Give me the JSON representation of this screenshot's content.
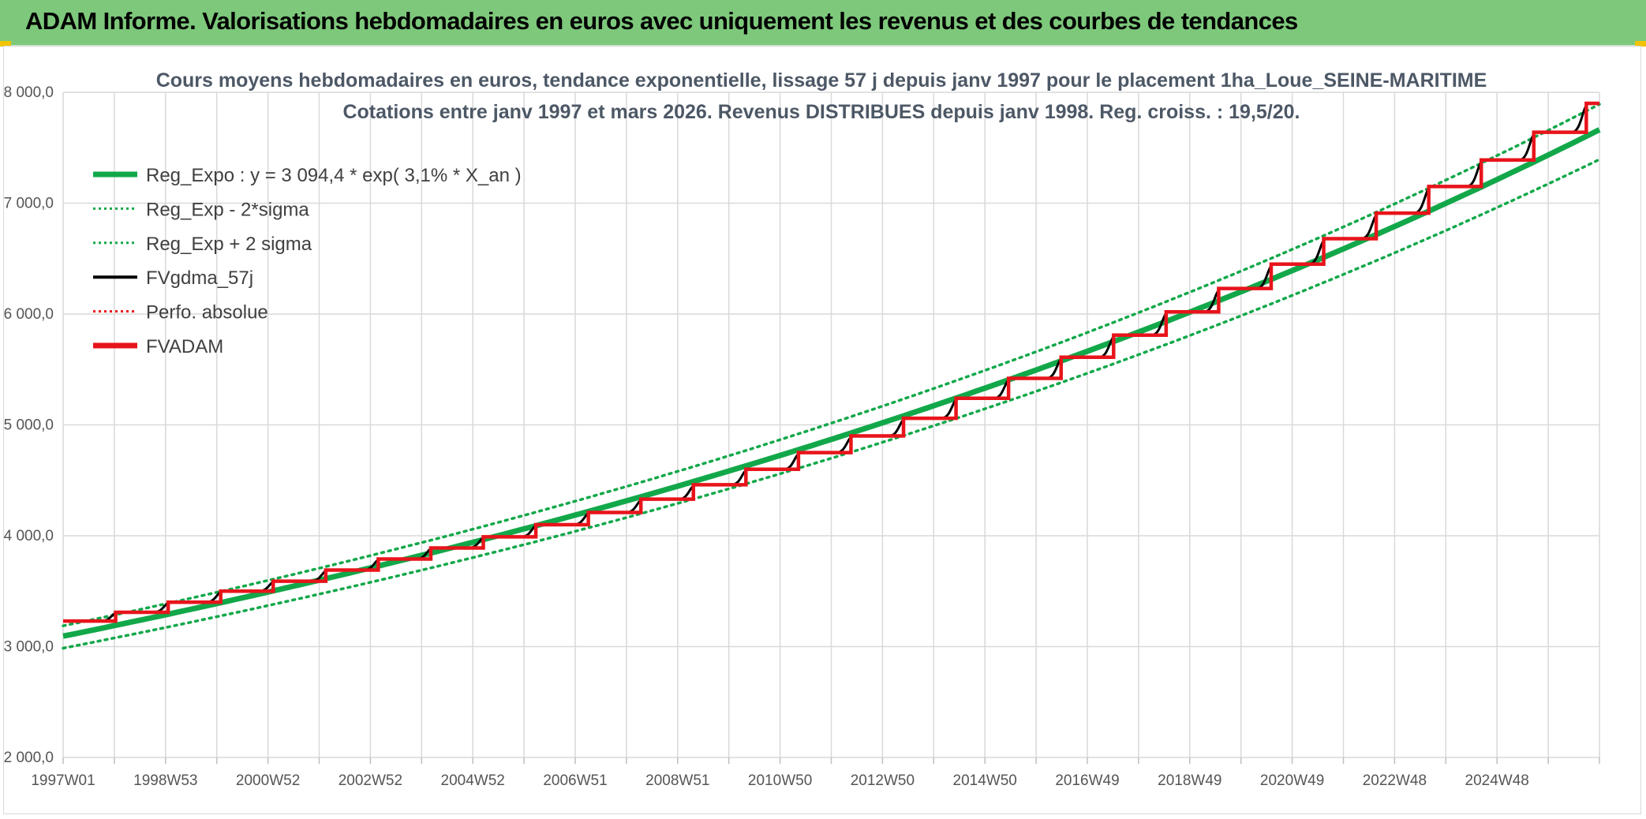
{
  "banner": {
    "title": "ADAM Informe. Valorisations hebdomadaires en euros avec uniquement les revenus et des courbes de tendances"
  },
  "colors": {
    "banner_bg": "#7dc87b",
    "reg_green": "#12a84a",
    "red": "#e8141b",
    "black": "#000000",
    "grid": "#d9d9d9"
  },
  "chart_data": {
    "type": "line",
    "title": "Cours moyens hebdomadaires en euros, tendance exponentielle, lissage 57 j depuis janv 1997 pour le placement 1ha_Loue_SEINE-MARITIME",
    "subtitle": "Cotations entre janv 1997 et mars 2026. Revenus DISTRIBUES depuis janv 1998. Reg. croiss. : 19,5/20.",
    "y_ticks": [
      "2 000,0",
      "3 000,0",
      "4 000,0",
      "5 000,0",
      "6 000,0",
      "7 000,0",
      "8 000,0"
    ],
    "ylim": [
      2000,
      8000
    ],
    "x_ticks": [
      "1997W01",
      "1998W53",
      "2000W52",
      "2002W52",
      "2004W52",
      "2006W51",
      "2008W51",
      "2010W50",
      "2012W50",
      "2014W50",
      "2016W49",
      "2018W49",
      "2020W49",
      "2022W48",
      "2024W48"
    ],
    "x_range_years": [
      1997.0,
      2026.25
    ],
    "grid": true,
    "legend_position": "top-left",
    "legend": [
      {
        "name": "Reg_Expo : y = 3 094,4 * exp( 3,1% *  X_an )",
        "color": "#12a84a",
        "style": "solid-thick"
      },
      {
        "name": "Reg_Exp - 2*sigma",
        "color": "#12a84a",
        "style": "dotted"
      },
      {
        "name": "Reg_Exp + 2 sigma",
        "color": "#12a84a",
        "style": "dotted"
      },
      {
        "name": "FVgdma_57j",
        "color": "#000000",
        "style": "solid"
      },
      {
        "name": "Perfo. absolue",
        "color": "#e8141b",
        "style": "dotted"
      },
      {
        "name": "FVADAM",
        "color": "#e8141b",
        "style": "solid-thick"
      }
    ],
    "regression": {
      "a": 3094.4,
      "rate": 0.031,
      "minus_2sigma_factor": 0.965,
      "plus_2sigma_factor": 1.03
    },
    "fvadam_steps": [
      {
        "year": 1997.0,
        "value": 3230
      },
      {
        "year": 1998.0,
        "value": 3310
      },
      {
        "year": 1999.0,
        "value": 3400
      },
      {
        "year": 2000.0,
        "value": 3500
      },
      {
        "year": 2001.0,
        "value": 3590
      },
      {
        "year": 2002.0,
        "value": 3690
      },
      {
        "year": 2003.0,
        "value": 3790
      },
      {
        "year": 2004.0,
        "value": 3890
      },
      {
        "year": 2005.0,
        "value": 3990
      },
      {
        "year": 2006.0,
        "value": 4100
      },
      {
        "year": 2007.0,
        "value": 4210
      },
      {
        "year": 2008.0,
        "value": 4330
      },
      {
        "year": 2009.0,
        "value": 4460
      },
      {
        "year": 2010.0,
        "value": 4600
      },
      {
        "year": 2011.0,
        "value": 4750
      },
      {
        "year": 2012.0,
        "value": 4900
      },
      {
        "year": 2013.0,
        "value": 5060
      },
      {
        "year": 2014.0,
        "value": 5240
      },
      {
        "year": 2015.0,
        "value": 5420
      },
      {
        "year": 2016.0,
        "value": 5610
      },
      {
        "year": 2017.0,
        "value": 5810
      },
      {
        "year": 2018.0,
        "value": 6020
      },
      {
        "year": 2019.0,
        "value": 6230
      },
      {
        "year": 2020.0,
        "value": 6450
      },
      {
        "year": 2021.0,
        "value": 6680
      },
      {
        "year": 2022.0,
        "value": 6910
      },
      {
        "year": 2023.0,
        "value": 7150
      },
      {
        "year": 2024.0,
        "value": 7390
      },
      {
        "year": 2025.0,
        "value": 7640
      },
      {
        "year": 2026.0,
        "value": 7900
      }
    ]
  }
}
